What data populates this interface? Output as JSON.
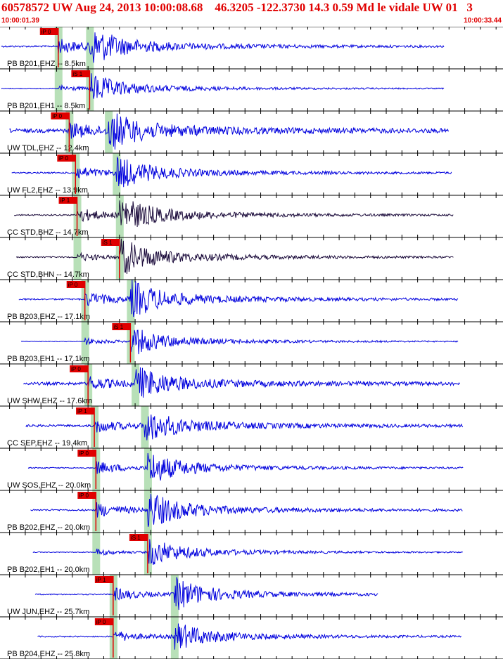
{
  "header": {
    "title": "60578572 UW Aug 24, 2013 10:00:08.68    46.3205 -122.3730 14.3 0.59 Md le vidale UW 01   3",
    "start_time": "10:00:01.39",
    "end_time": "10:00:33.44"
  },
  "colors": {
    "title": "#e00000",
    "trace_blue": "#0000dd",
    "trace_dark": "#1a0a3a",
    "pick": "#e00000",
    "window": "#b8e0b8",
    "grid": "#000000"
  },
  "chart_data": {
    "type": "line",
    "title": "",
    "xlabel": "",
    "ylabel": "",
    "time_range_s": [
      1.39,
      33.44
    ],
    "grid": true,
    "traces": [
      {
        "label": "PB B201,EHZ -- 8.5km",
        "color": "trace_blue",
        "phase": "iP 0",
        "p_time": 5.1,
        "s_time": 7.1,
        "pick_time": 5.1,
        "amp": 0.9,
        "noise": 0.05,
        "end_time": 29.7
      },
      {
        "label": "PB B201,EH1 -- 8.5km",
        "color": "trace_blue",
        "phase": "iS 1",
        "p_time": 5.1,
        "s_time": 7.1,
        "pick_time": 7.1,
        "amp": 0.7,
        "noise": 0.03,
        "end_time": 29.7
      },
      {
        "label": "UW TDL,EHZ -- 12.4km",
        "color": "trace_blue",
        "phase": "iP 0",
        "p_time": 5.8,
        "s_time": 8.3,
        "pick_time": 5.8,
        "amp": 0.9,
        "noise": 0.12,
        "end_time": 30.0
      },
      {
        "label": "UW FL2,EHZ -- 13.9km",
        "color": "trace_blue",
        "phase": "iP 0",
        "p_time": 6.2,
        "s_time": 8.8,
        "pick_time": 6.2,
        "amp": 0.8,
        "noise": 0.05,
        "end_time": 30.2
      },
      {
        "label": "CC STD,BHZ -- 14.7km",
        "color": "trace_dark",
        "phase": "iP 1",
        "p_time": 6.3,
        "s_time": 9.0,
        "pick_time": 6.3,
        "amp": 0.9,
        "noise": 0.04,
        "end_time": 30.3
      },
      {
        "label": "CC STD,BHN -- 14.7km",
        "color": "trace_dark",
        "phase": "iS 1",
        "p_time": 6.3,
        "s_time": 9.0,
        "pick_time": 9.0,
        "amp": 0.9,
        "noise": 0.04,
        "end_time": 30.3
      },
      {
        "label": "PB B203,EHZ -- 17.1km",
        "color": "trace_blue",
        "phase": "iP 0",
        "p_time": 6.8,
        "s_time": 9.7,
        "pick_time": 6.8,
        "amp": 0.9,
        "noise": 0.05,
        "end_time": 30.6
      },
      {
        "label": "PB B203,EH1 -- 17.1km",
        "color": "trace_blue",
        "phase": "iS 1",
        "p_time": 6.8,
        "s_time": 9.7,
        "pick_time": 9.7,
        "amp": 0.7,
        "noise": 0.03,
        "end_time": 30.6
      },
      {
        "label": "UW SHW,EHZ -- 17.6km",
        "color": "trace_blue",
        "phase": "iP 0",
        "p_time": 7.0,
        "s_time": 10.0,
        "pick_time": 7.0,
        "amp": 0.8,
        "noise": 0.1,
        "end_time": 30.7
      },
      {
        "label": "CC SEP,EHZ -- 19.4km",
        "color": "trace_blue",
        "phase": "iP 1",
        "p_time": 7.4,
        "s_time": 10.6,
        "pick_time": 7.4,
        "amp": 0.8,
        "noise": 0.08,
        "end_time": 30.9
      },
      {
        "label": "UW SOS,EHZ -- 20.0km",
        "color": "trace_blue",
        "phase": "iP 0",
        "p_time": 7.5,
        "s_time": 10.8,
        "pick_time": 7.5,
        "amp": 0.8,
        "noise": 0.04,
        "end_time": 30.9
      },
      {
        "label": "PB B202,EHZ -- 20.0km",
        "color": "trace_blue",
        "phase": "iP 0",
        "p_time": 7.5,
        "s_time": 10.8,
        "pick_time": 7.5,
        "amp": 0.9,
        "noise": 0.05,
        "end_time": 30.9
      },
      {
        "label": "PB B202,EH1 -- 20.0km",
        "color": "trace_blue",
        "phase": "iS 1",
        "p_time": 7.5,
        "s_time": 10.8,
        "pick_time": 10.8,
        "amp": 0.7,
        "noise": 0.03,
        "end_time": 30.9
      },
      {
        "label": "UW JUN,EHZ -- 25.7km",
        "color": "trace_blue",
        "phase": "iP 1",
        "p_time": 8.6,
        "s_time": 12.5,
        "pick_time": 8.6,
        "amp": 0.8,
        "noise": 0.04,
        "end_time": 25.5
      },
      {
        "label": "PB B204,EHZ -- 25.8km",
        "color": "trace_blue",
        "phase": "iP 0",
        "p_time": 8.6,
        "s_time": 12.5,
        "pick_time": 8.6,
        "amp": 0.7,
        "noise": 0.05,
        "end_time": 30.8
      }
    ]
  }
}
